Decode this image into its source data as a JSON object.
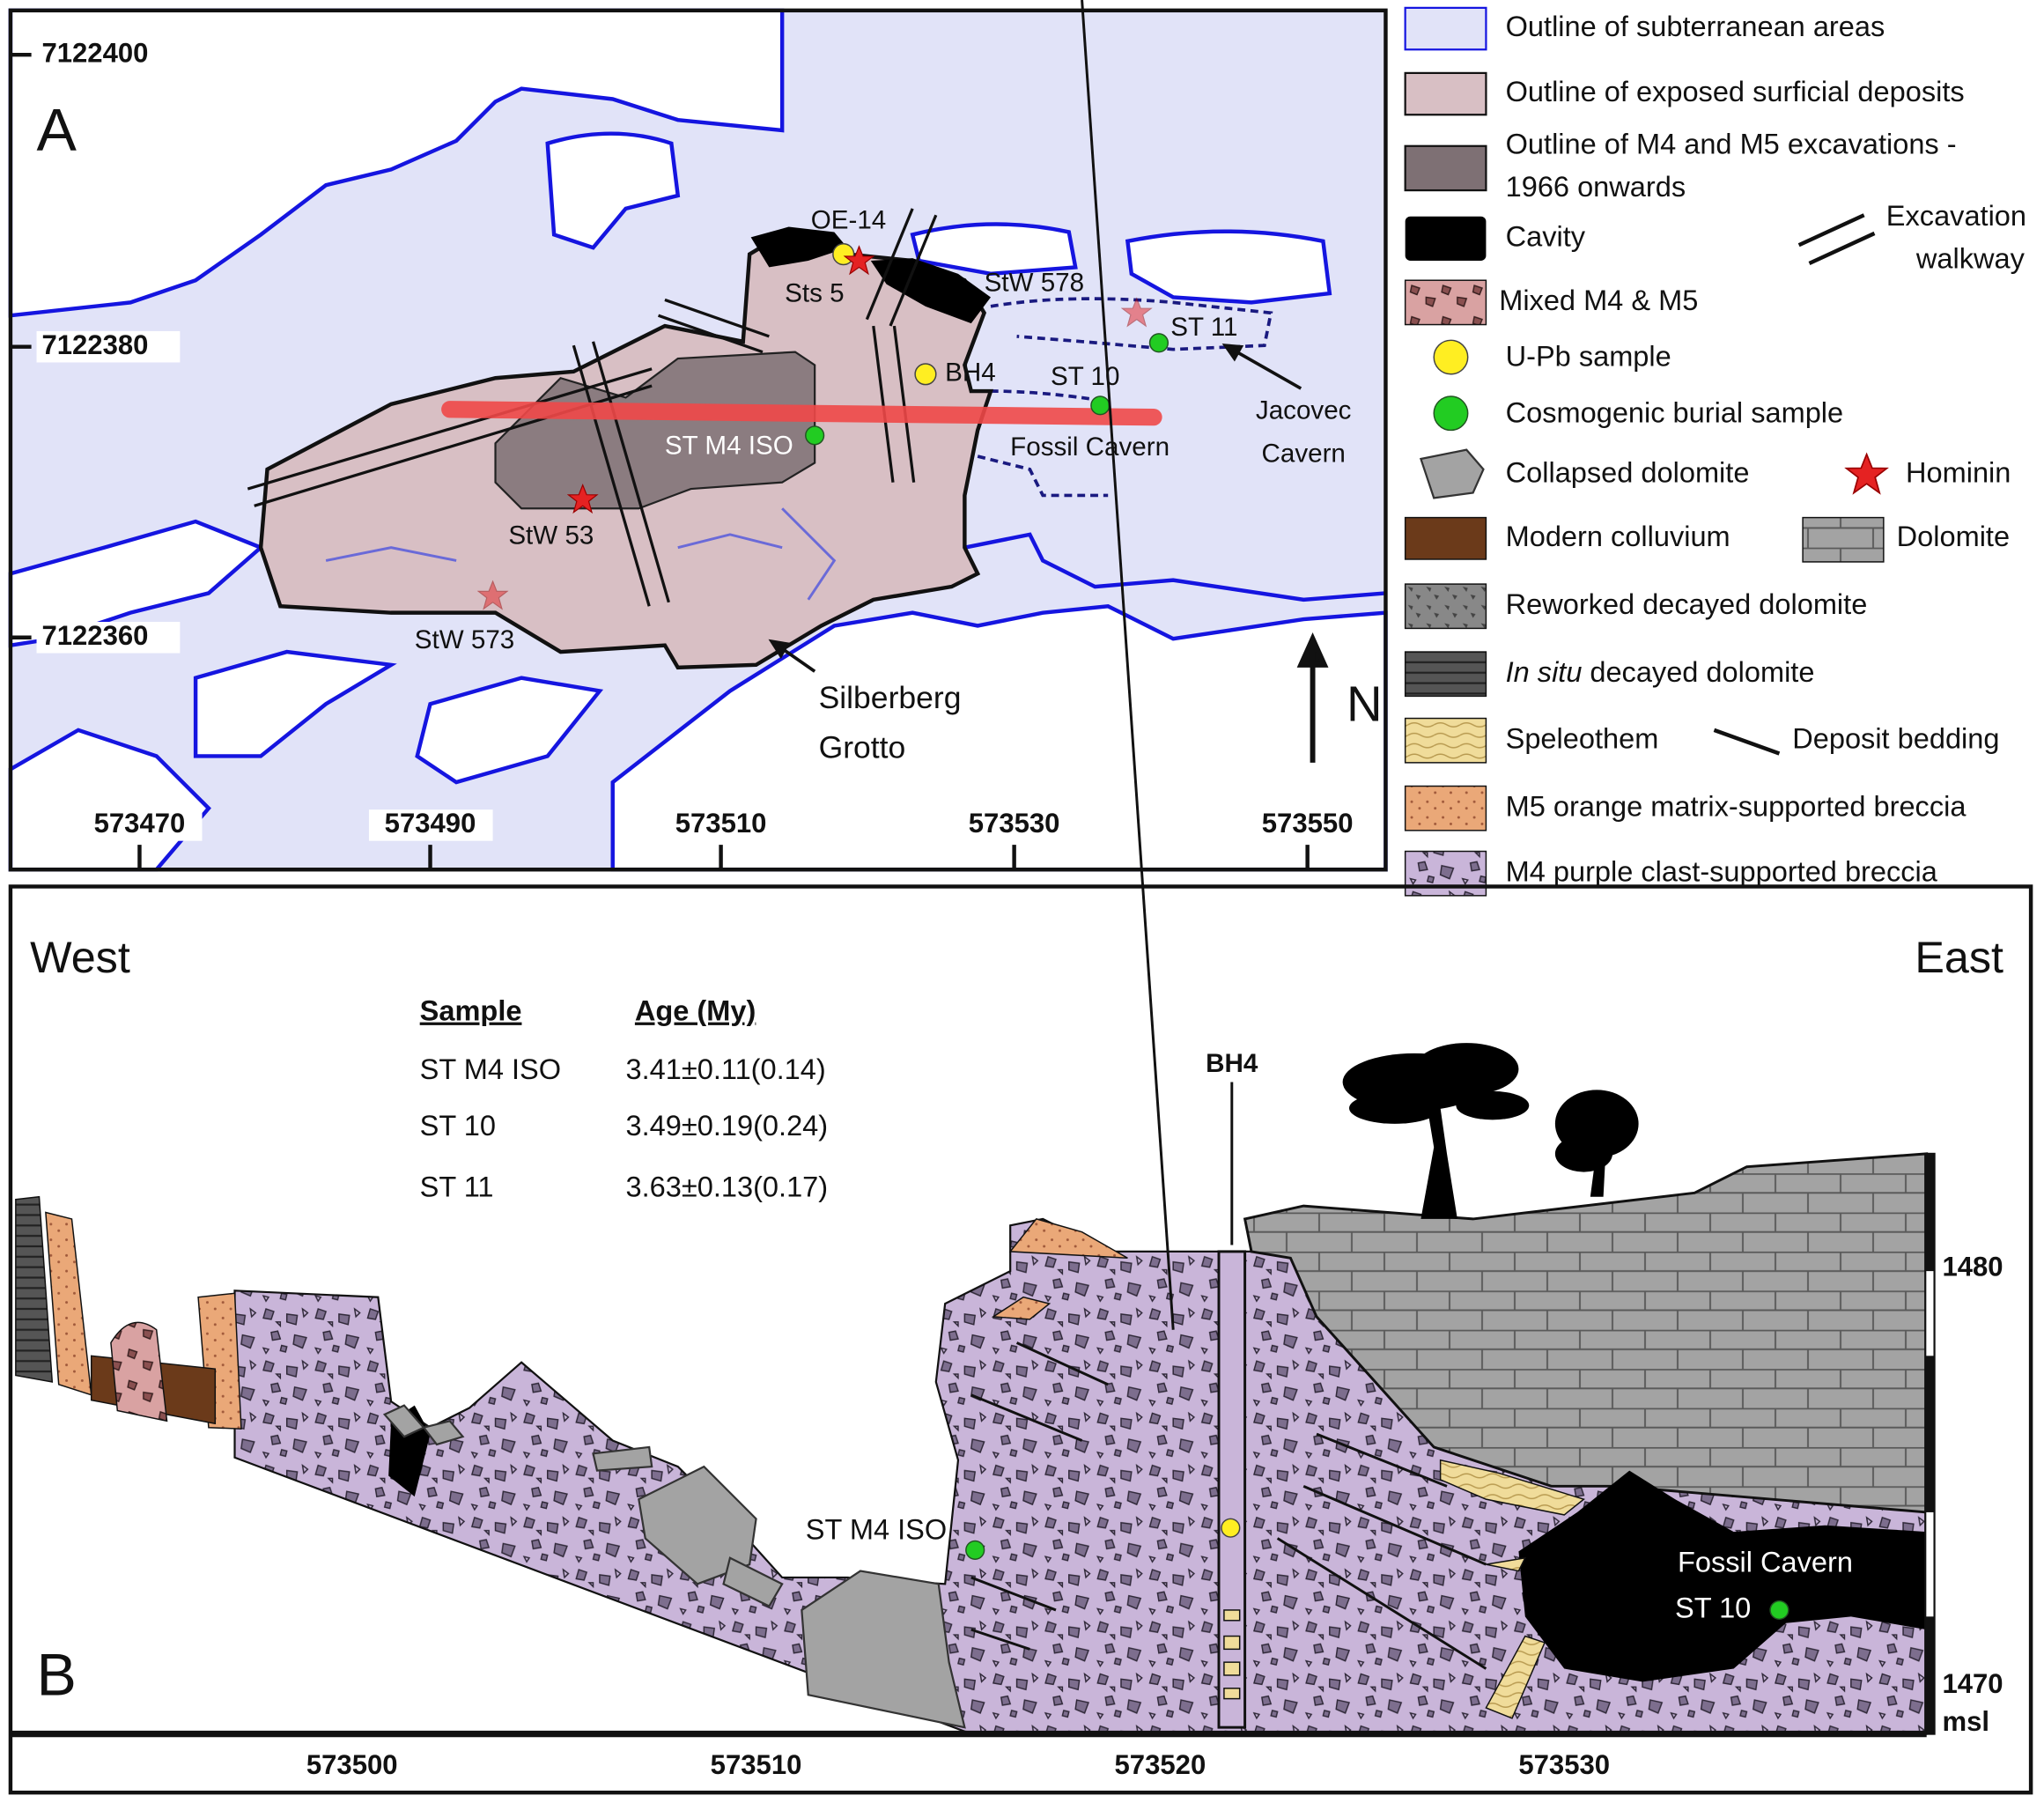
{
  "panel_a": {
    "label": "A",
    "y_ticks": [
      "7122400",
      "7122380",
      "7122360"
    ],
    "x_ticks": [
      "573470",
      "573490",
      "573510",
      "573530",
      "573550"
    ],
    "labels": {
      "oe14": "OE-14",
      "sts5": "Sts 5",
      "stw578": "StW 578",
      "st11": "ST 11",
      "bh4": "BH4",
      "st10": "ST 10",
      "stm4iso": "ST M4 ISO",
      "fossil_cavern": "Fossil Cavern",
      "jacovec": [
        "Jacovec",
        "Cavern"
      ],
      "stw53": "StW 53",
      "stw573": "StW 573",
      "silberberg": [
        "Silberberg",
        "Grotto"
      ],
      "north": "N"
    }
  },
  "legend": {
    "subterranean": "Outline of subterranean areas",
    "surficial": "Outline of exposed surficial deposits",
    "excavations": [
      "Outline of M4 and M5 excavations -",
      "1966 onwards"
    ],
    "cavity": "Cavity",
    "walkway": [
      "Excavation",
      "walkway"
    ],
    "mixed": "Mixed M4 & M5",
    "upb": "U-Pb sample",
    "cosmogenic": "Cosmogenic burial sample",
    "collapsed": "Collapsed dolomite",
    "hominin": "Hominin",
    "colluvium": "Modern colluvium",
    "dolomite": "Dolomite",
    "reworked": "Reworked decayed dolomite",
    "insitu": [
      "In situ",
      "decayed dolomite"
    ],
    "speleothem": "Speleothem",
    "bedding": "Deposit bedding",
    "m5": "M5 orange matrix-supported breccia",
    "m4": "M4 purple clast-supported breccia"
  },
  "panel_b": {
    "label": "B",
    "west": "West",
    "east": "East",
    "table": {
      "header": [
        "Sample",
        "Age (My)"
      ],
      "rows": [
        [
          "ST M4 ISO",
          "3.41±0.11(0.14)"
        ],
        [
          "ST 10",
          "3.49±0.19(0.24)"
        ],
        [
          "ST 11",
          "3.63±0.13(0.17)"
        ]
      ]
    },
    "labels": {
      "bh4": "BH4",
      "stm4iso": "ST M4 ISO",
      "fossil_cavern": "Fossil Cavern",
      "st10": "ST 10"
    },
    "elevation_ticks": [
      "1480",
      "1470"
    ],
    "elevation_unit": "msl",
    "x_ticks": [
      "573500",
      "573510",
      "573520",
      "573530"
    ]
  }
}
